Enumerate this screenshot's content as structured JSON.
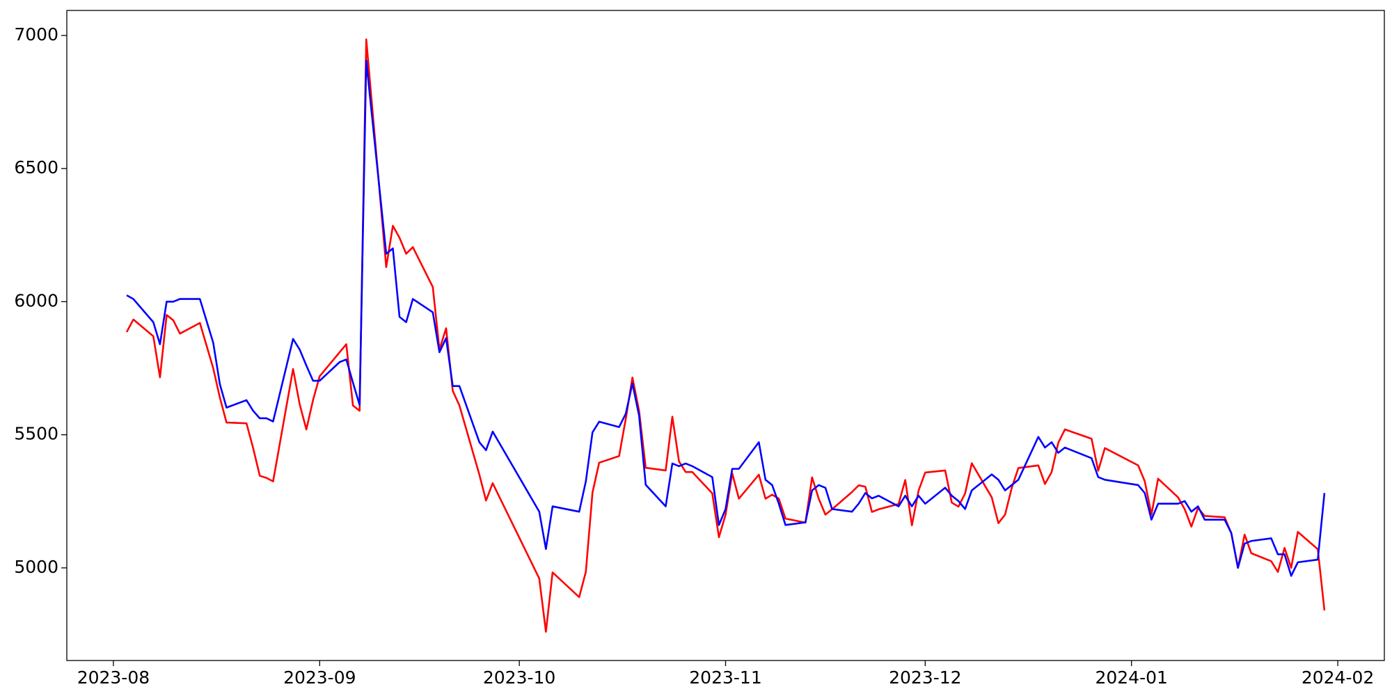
{
  "chart_data": {
    "type": "line",
    "x": [
      "2023-08-03",
      "2023-08-04",
      "2023-08-07",
      "2023-08-08",
      "2023-08-09",
      "2023-08-10",
      "2023-08-11",
      "2023-08-14",
      "2023-08-16",
      "2023-08-17",
      "2023-08-18",
      "2023-08-21",
      "2023-08-22",
      "2023-08-23",
      "2023-08-24",
      "2023-08-25",
      "2023-08-28",
      "2023-08-29",
      "2023-08-30",
      "2023-08-31",
      "2023-09-01",
      "2023-09-04",
      "2023-09-05",
      "2023-09-06",
      "2023-09-07",
      "2023-09-08",
      "2023-09-11",
      "2023-09-12",
      "2023-09-13",
      "2023-09-14",
      "2023-09-15",
      "2023-09-18",
      "2023-09-19",
      "2023-09-20",
      "2023-09-21",
      "2023-09-22",
      "2023-09-25",
      "2023-09-26",
      "2023-09-27",
      "2023-10-04",
      "2023-10-05",
      "2023-10-06",
      "2023-10-10",
      "2023-10-11",
      "2023-10-12",
      "2023-10-13",
      "2023-10-16",
      "2023-10-17",
      "2023-10-18",
      "2023-10-19",
      "2023-10-20",
      "2023-10-23",
      "2023-10-24",
      "2023-10-25",
      "2023-10-26",
      "2023-10-27",
      "2023-10-30",
      "2023-10-31",
      "2023-11-01",
      "2023-11-02",
      "2023-11-03",
      "2023-11-06",
      "2023-11-07",
      "2023-11-08",
      "2023-11-09",
      "2023-11-10",
      "2023-11-13",
      "2023-11-14",
      "2023-11-15",
      "2023-11-16",
      "2023-11-17",
      "2023-11-20",
      "2023-11-21",
      "2023-11-22",
      "2023-11-23",
      "2023-11-24",
      "2023-11-27",
      "2023-11-28",
      "2023-11-29",
      "2023-11-30",
      "2023-12-01",
      "2023-12-04",
      "2023-12-05",
      "2023-12-06",
      "2023-12-07",
      "2023-12-08",
      "2023-12-11",
      "2023-12-12",
      "2023-12-13",
      "2023-12-14",
      "2023-12-15",
      "2023-12-18",
      "2023-12-19",
      "2023-12-20",
      "2023-12-21",
      "2023-12-22",
      "2023-12-26",
      "2023-12-27",
      "2023-12-28",
      "2024-01-02",
      "2024-01-03",
      "2024-01-04",
      "2024-01-05",
      "2024-01-08",
      "2024-01-09",
      "2024-01-10",
      "2024-01-11",
      "2024-01-12",
      "2024-01-15",
      "2024-01-16",
      "2024-01-17",
      "2024-01-18",
      "2024-01-19",
      "2024-01-22",
      "2024-01-23",
      "2024-01-24",
      "2024-01-25",
      "2024-01-26",
      "2024-01-29",
      "2024-01-30"
    ],
    "series": [
      {
        "color": "#ff0000",
        "values": [
          5886,
          5933,
          5870,
          5716,
          5950,
          5930,
          5880,
          5920,
          5750,
          5640,
          5546,
          5543,
          5450,
          5346,
          5338,
          5325,
          5747,
          5614,
          5520,
          5630,
          5720,
          5810,
          5840,
          5610,
          5590,
          6985,
          6130,
          6285,
          6240,
          6180,
          6205,
          6055,
          5820,
          5900,
          5665,
          5610,
          5350,
          5253,
          5318,
          4960,
          4760,
          4983,
          4890,
          4985,
          5283,
          5395,
          5420,
          5560,
          5715,
          5590,
          5376,
          5366,
          5568,
          5400,
          5360,
          5360,
          5280,
          5115,
          5200,
          5355,
          5260,
          5350,
          5260,
          5275,
          5260,
          5185,
          5170,
          5340,
          5260,
          5200,
          5220,
          5285,
          5310,
          5305,
          5210,
          5220,
          5240,
          5330,
          5160,
          5290,
          5358,
          5366,
          5245,
          5230,
          5280,
          5393,
          5265,
          5168,
          5200,
          5300,
          5375,
          5385,
          5315,
          5360,
          5470,
          5520,
          5485,
          5365,
          5450,
          5385,
          5325,
          5200,
          5335,
          5265,
          5220,
          5155,
          5225,
          5195,
          5190,
          5130,
          5000,
          5125,
          5055,
          5025,
          4985,
          5075,
          5000,
          5135,
          5070,
          4840
        ]
      },
      {
        "color": "#0000ff",
        "values": [
          6024,
          6010,
          5923,
          5840,
          6000,
          6000,
          6010,
          6010,
          5846,
          5690,
          5602,
          5630,
          5590,
          5562,
          5562,
          5550,
          5860,
          5820,
          5760,
          5703,
          5703,
          5773,
          5783,
          5696,
          5612,
          6906,
          6180,
          6200,
          5943,
          5923,
          6010,
          5960,
          5810,
          5863,
          5683,
          5683,
          5472,
          5442,
          5512,
          5211,
          5071,
          5231,
          5211,
          5325,
          5509,
          5549,
          5529,
          5579,
          5693,
          5572,
          5312,
          5231,
          5392,
          5382,
          5392,
          5382,
          5341,
          5161,
          5221,
          5372,
          5372,
          5472,
          5331,
          5311,
          5241,
          5161,
          5171,
          5291,
          5311,
          5301,
          5221,
          5211,
          5241,
          5281,
          5261,
          5271,
          5231,
          5271,
          5231,
          5271,
          5241,
          5301,
          5271,
          5251,
          5221,
          5291,
          5351,
          5331,
          5291,
          5311,
          5331,
          5492,
          5452,
          5472,
          5432,
          5452,
          5412,
          5341,
          5331,
          5311,
          5281,
          5181,
          5241,
          5241,
          5251,
          5211,
          5231,
          5181,
          5181,
          5131,
          5000,
          5091,
          5101,
          5111,
          5051,
          5051,
          4970,
          5021,
          5031,
          5281
        ]
      }
    ],
    "xlim": [
      "2023-07-25",
      "2024-02-08"
    ],
    "xticks": [
      {
        "value": "2023-08-01",
        "label": "2023-08"
      },
      {
        "value": "2023-09-01",
        "label": "2023-09"
      },
      {
        "value": "2023-10-01",
        "label": "2023-10"
      },
      {
        "value": "2023-11-01",
        "label": "2023-11"
      },
      {
        "value": "2023-12-01",
        "label": "2023-12"
      },
      {
        "value": "2024-01-01",
        "label": "2024-01"
      },
      {
        "value": "2024-02-01",
        "label": "2024-02"
      }
    ],
    "ylim": [
      4652,
      7094
    ],
    "yticks": [
      5000,
      5500,
      6000,
      6500,
      7000
    ],
    "grid": false
  }
}
